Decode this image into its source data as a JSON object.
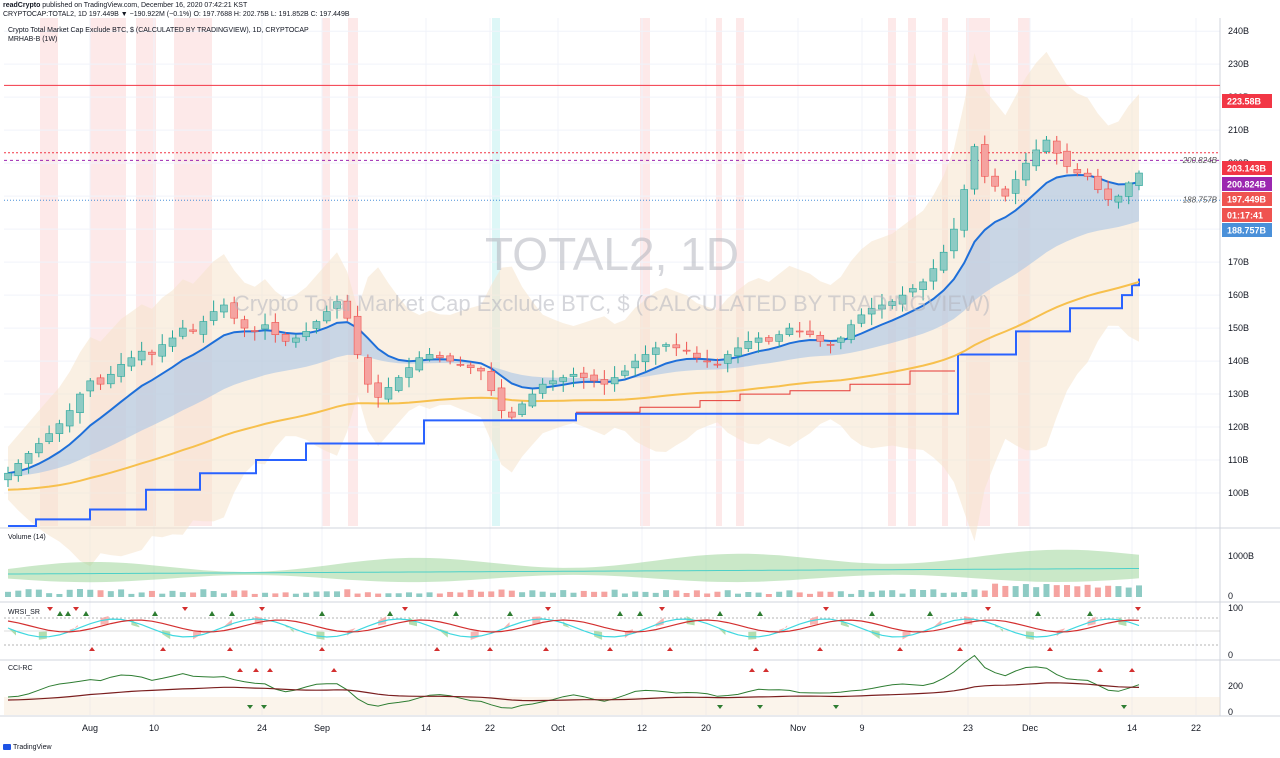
{
  "header": {
    "publisher": "readCrypto",
    "published_text": " published on TradingView.com, December 16, 2020 07:42:21 KST",
    "symbol_line": "CRYPTOCAP:TOTAL2, 1D 197.449B ▼ −190.922M (−0.1%) O: 197.7688 H: 202.75B L: 191.852B C: 197.449B"
  },
  "chart_data": {
    "type": "line",
    "title": "Crypto Total Market Cap Exclude BTC, $ (CALCULATED BY TRADINGVIEW), 1D, CRYPTOCAP",
    "indicator_label": "MRHAB-B (1W)",
    "watermark_symbol": "TOTAL2, 1D",
    "watermark_desc": "Crypto Total Market Cap Exclude BTC, $ (CALCULATED BY TRADINGVIEW)",
    "ylim": [
      90,
      244
    ],
    "y_ticks": [
      "100B",
      "110B",
      "120B",
      "130B",
      "140B",
      "150B",
      "160B",
      "170B",
      "180B",
      "190B",
      "200B",
      "210B",
      "220B",
      "230B",
      "240B"
    ],
    "x_ticks": [
      "Aug",
      "10",
      "24",
      "Sep",
      "14",
      "22",
      "Oct",
      "12",
      "20",
      "Nov",
      "9",
      "23",
      "Dec",
      "14",
      "22"
    ],
    "price_labels": [
      {
        "text": "223.58B",
        "value": 223.58,
        "color": "#f23645"
      },
      {
        "text": "203.143B",
        "value": 203.143,
        "color": "#f23645"
      },
      {
        "text": "200.824B",
        "value": 200.824,
        "color": "#9c27b0"
      },
      {
        "text": "197.449B",
        "value": 197.449,
        "color": "#ef5350"
      },
      {
        "text": "01:17:41",
        "value": 194.4,
        "color": "#ef5350"
      },
      {
        "text": "188.757B",
        "value": 188.757,
        "color": "#4a90d9"
      }
    ],
    "line_labels": [
      {
        "text": "200.824B",
        "value": 200.824
      },
      {
        "text": "188.757B",
        "value": 188.757
      }
    ],
    "close": [
      106,
      109,
      112,
      115,
      118,
      121,
      125,
      130,
      134,
      133,
      136,
      139,
      141,
      143,
      142,
      145,
      147,
      150,
      149,
      152,
      155,
      157,
      153,
      150,
      149,
      151,
      148,
      146,
      147,
      149,
      152,
      155,
      158,
      153,
      142,
      133,
      129,
      132,
      135,
      138,
      141,
      142,
      141,
      140,
      139,
      138,
      137,
      131,
      125,
      123,
      127,
      130,
      133,
      134,
      135,
      136,
      135,
      134,
      133,
      135,
      137,
      140,
      142,
      144,
      145,
      144,
      143,
      141,
      140,
      139,
      142,
      144,
      146,
      147,
      146,
      148,
      150,
      149,
      148,
      146,
      145,
      147,
      151,
      154,
      156,
      157,
      158,
      160,
      162,
      164,
      168,
      173,
      180,
      192,
      205,
      196,
      193,
      190,
      195,
      200,
      204,
      207,
      203,
      199,
      197,
      196,
      192,
      189,
      190,
      194,
      197
    ],
    "volume_ticks": [
      "1000B",
      "0"
    ],
    "wrsi_ticks": [
      "100",
      "0"
    ],
    "cci_ticks": [
      "200",
      "0"
    ],
    "panes": [
      "Volume (14)",
      "WRSI_SR",
      "CCI-RC"
    ],
    "colors": {
      "up": "#26a69a",
      "down": "#ef5350",
      "band": "#f5e3cc",
      "ema_blue": "#1e6fd9",
      "ema_yellow": "#f7c04d",
      "step_blue": "#2962ff",
      "step_red": "#e53935"
    }
  },
  "footer": {
    "brand": "TradingView"
  }
}
